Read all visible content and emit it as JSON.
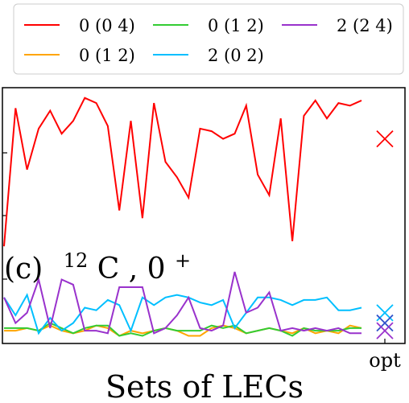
{
  "chart_data": {
    "type": "line",
    "panel_label": "(c)",
    "nucleus_mass": "12",
    "nucleus_symbol": "C",
    "state_j": "0",
    "state_parity": "+",
    "xlabel": "Sets of LECs",
    "x_tick_labels": [
      "opt"
    ],
    "ylabel": "",
    "ylim": [
      0,
      1
    ],
    "grid": false,
    "legend_position": "top",
    "series": [
      {
        "name": "0 (0 4)",
        "color": "#ff0000",
        "values": [
          0.38,
          0.92,
          0.68,
          0.84,
          0.91,
          0.82,
          0.87,
          0.96,
          0.94,
          0.85,
          0.52,
          0.87,
          0.49,
          0.94,
          0.71,
          0.65,
          0.57,
          0.84,
          0.83,
          0.8,
          0.82,
          0.93,
          0.66,
          0.58,
          0.88,
          0.4,
          0.89,
          0.95,
          0.88,
          0.94,
          0.93,
          0.95
        ],
        "opt": 0.8
      },
      {
        "name": "0 (1 2)",
        "color": "#ffa500",
        "values": [
          0.05,
          0.05,
          0.06,
          0.05,
          0.07,
          0.05,
          0.04,
          0.05,
          0.07,
          0.06,
          0.03,
          0.05,
          0.04,
          0.05,
          0.06,
          0.05,
          0.03,
          0.03,
          0.06,
          0.07,
          0.06,
          0.04,
          0.05,
          0.06,
          0.05,
          0.04,
          0.06,
          0.04,
          0.05,
          0.04,
          0.07,
          0.06
        ],
        "opt": 0.06
      },
      {
        "name": "0 (1 2)",
        "color": "#33cc33",
        "values": [
          0.06,
          0.06,
          0.06,
          0.05,
          0.08,
          0.06,
          0.04,
          0.06,
          0.07,
          0.07,
          0.03,
          0.04,
          0.03,
          0.05,
          0.06,
          0.05,
          0.05,
          0.05,
          0.07,
          0.06,
          0.07,
          0.04,
          0.05,
          0.06,
          0.05,
          0.03,
          0.06,
          0.05,
          0.05,
          0.05,
          0.06,
          0.06
        ],
        "opt": 0.06
      },
      {
        "name": "2 (0 2)",
        "color": "#00bfff",
        "values": [
          0.18,
          0.11,
          0.19,
          0.04,
          0.1,
          0.05,
          0.08,
          0.14,
          0.13,
          0.17,
          0.15,
          0.05,
          0.18,
          0.15,
          0.18,
          0.19,
          0.18,
          0.16,
          0.15,
          0.17,
          0.06,
          0.12,
          0.18,
          0.18,
          0.17,
          0.15,
          0.17,
          0.17,
          0.18,
          0.13,
          0.13,
          0.14
        ],
        "opt": 0.12
      },
      {
        "name": "2 (2 4)",
        "color": "#9932cc",
        "values": [
          0.18,
          0.08,
          0.12,
          0.25,
          0.06,
          0.25,
          0.23,
          0.05,
          0.05,
          0.04,
          0.22,
          0.22,
          0.22,
          0.04,
          0.06,
          0.11,
          0.18,
          0.06,
          0.05,
          0.07,
          0.28,
          0.12,
          0.14,
          0.2,
          0.05,
          0.06,
          0.05,
          0.06,
          0.05,
          0.06,
          0.04,
          0.04
        ],
        "opt": 0.05
      }
    ],
    "opt_markers": [
      {
        "color": "#ff0000",
        "value": 0.8
      },
      {
        "color": "#00bfff",
        "value": 0.12
      },
      {
        "color": "#3355cc",
        "value": 0.08
      },
      {
        "color": "#9932cc",
        "value": 0.05
      }
    ]
  }
}
